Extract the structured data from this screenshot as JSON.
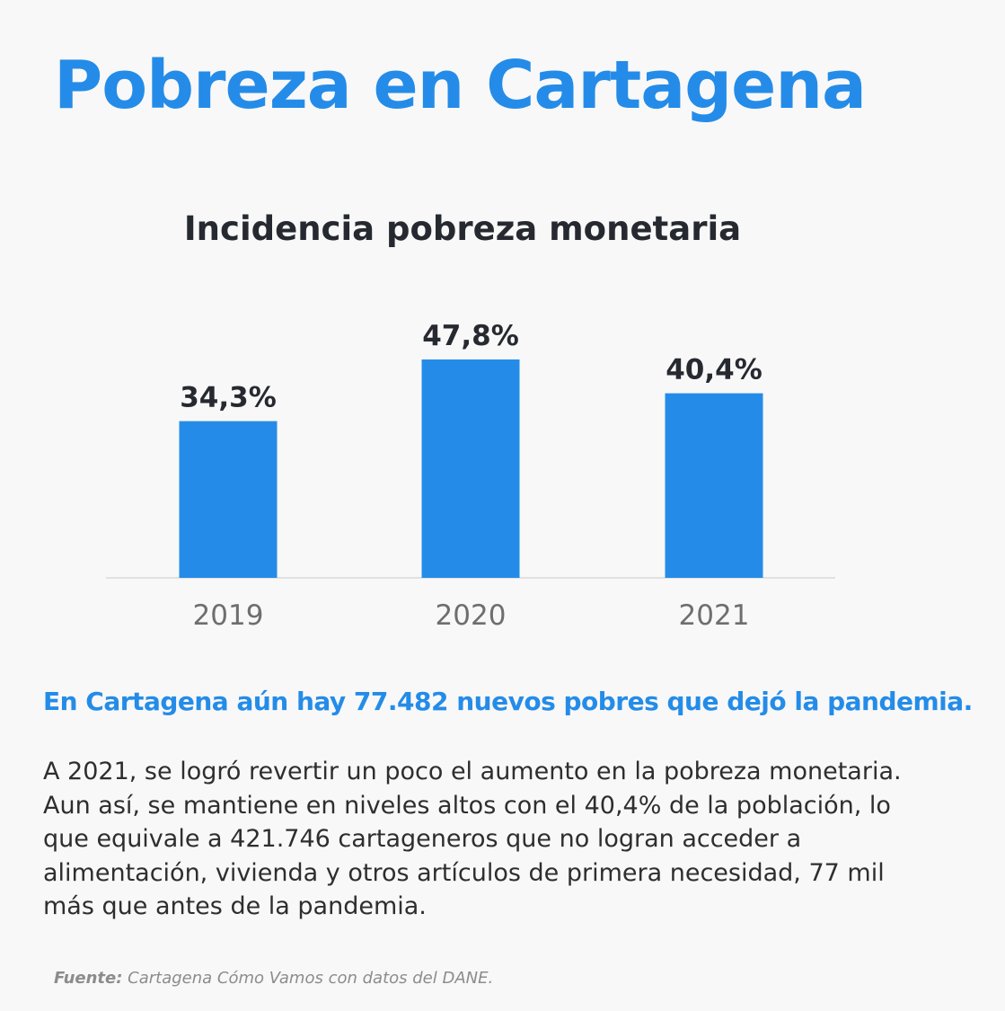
{
  "page": {
    "title": "Pobreza en Cartagena",
    "accent_color": "#248ce8",
    "headline": "En Cartagena aún hay 77.482 nuevos pobres que dejó la pandemia.",
    "body_lines": [
      "A 2021, se logró revertir un poco el aumento en la pobreza monetaria.",
      "Aun así, se mantiene en niveles altos con el 40,4% de la población, lo",
      "que equivale a 421.746 cartageneros que no logran acceder a",
      "alimentación, vivienda y otros artículos de primera necesidad, 77 mil",
      "más que antes de la pandemia."
    ],
    "source_label": "Fuente:",
    "source_text": " Cartagena Cómo Vamos con datos del DANE."
  },
  "chart_data": {
    "type": "bar",
    "title": "Incidencia pobreza monetaria",
    "categories": [
      "2019",
      "2020",
      "2021"
    ],
    "values": [
      34.3,
      47.8,
      40.4
    ],
    "value_labels": [
      "34,3%",
      "47,8%",
      "40,4%"
    ],
    "xlabel": "",
    "ylabel": "",
    "ylim": [
      0,
      47.8
    ],
    "grid": false,
    "legend": "none",
    "bar_color": "#248ce8",
    "value_label_color": "#262a30",
    "tick_label_color": "#6e6e6e"
  }
}
